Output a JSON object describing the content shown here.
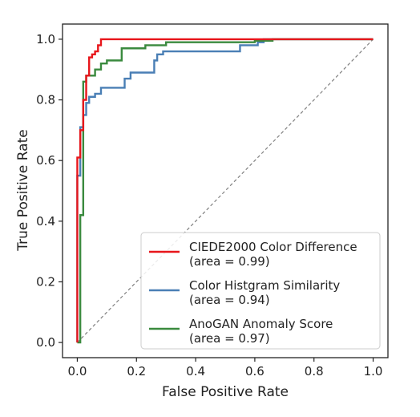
{
  "chart_data": {
    "type": "line",
    "title": "",
    "xlabel": "False Positive Rate",
    "ylabel": "True Positive Rate",
    "xlim": [
      -0.05,
      1.05
    ],
    "ylim": [
      -0.05,
      1.05
    ],
    "xticks": [
      0.0,
      0.2,
      0.4,
      0.6,
      0.8,
      1.0
    ],
    "yticks": [
      0.0,
      0.2,
      0.4,
      0.6,
      0.8,
      1.0
    ],
    "xtick_labels": [
      "0.0",
      "0.2",
      "0.4",
      "0.6",
      "0.8",
      "1.0"
    ],
    "ytick_labels": [
      "0.0",
      "0.2",
      "0.4",
      "0.6",
      "0.8",
      "1.0"
    ],
    "grid": false,
    "legend_position": "lower-right",
    "diagonal": {
      "x": [
        0,
        1
      ],
      "y": [
        0,
        1
      ],
      "color": "#808080",
      "style": "dashed"
    },
    "series": [
      {
        "name": "CIEDE2000 Color Difference",
        "area_label": "(area = 0.99)",
        "color": "#e8161b",
        "x": [
          0,
          0,
          0.01,
          0.01,
          0.02,
          0.02,
          0.03,
          0.03,
          0.04,
          0.04,
          0.05,
          0.05,
          0.06,
          0.06,
          0.07,
          0.07,
          0.08,
          0.08,
          1.0
        ],
        "y": [
          0,
          0.61,
          0.61,
          0.7,
          0.7,
          0.8,
          0.8,
          0.88,
          0.88,
          0.94,
          0.94,
          0.95,
          0.95,
          0.96,
          0.96,
          0.98,
          0.98,
          1.0,
          1.0
        ]
      },
      {
        "name": "Color Histgram Similarity",
        "area_label": "(area = 0.94)",
        "color": "#4a7fb5",
        "x": [
          0,
          0,
          0.01,
          0.01,
          0.02,
          0.02,
          0.03,
          0.03,
          0.04,
          0.04,
          0.06,
          0.06,
          0.08,
          0.08,
          0.16,
          0.16,
          0.18,
          0.18,
          0.26,
          0.26,
          0.27,
          0.27,
          0.29,
          0.29,
          0.55,
          0.55,
          0.61,
          0.61,
          0.63,
          0.63,
          1.0
        ],
        "y": [
          0,
          0.55,
          0.55,
          0.71,
          0.71,
          0.75,
          0.75,
          0.79,
          0.79,
          0.81,
          0.81,
          0.82,
          0.82,
          0.84,
          0.84,
          0.87,
          0.87,
          0.89,
          0.89,
          0.93,
          0.93,
          0.95,
          0.95,
          0.96,
          0.96,
          0.98,
          0.98,
          0.99,
          0.99,
          1.0,
          1.0
        ]
      },
      {
        "name": "AnoGAN Anomaly Score",
        "area_label": "(area = 0.97)",
        "color": "#3a8a3e",
        "x": [
          0,
          0.01,
          0.01,
          0.02,
          0.02,
          0.03,
          0.03,
          0.06,
          0.06,
          0.08,
          0.08,
          0.1,
          0.1,
          0.15,
          0.15,
          0.23,
          0.23,
          0.3,
          0.3,
          0.6,
          0.6,
          0.66,
          0.66,
          1.0
        ],
        "y": [
          0,
          0,
          0.42,
          0.42,
          0.86,
          0.86,
          0.88,
          0.88,
          0.9,
          0.9,
          0.92,
          0.92,
          0.93,
          0.93,
          0.97,
          0.97,
          0.98,
          0.98,
          0.99,
          0.99,
          0.995,
          0.995,
          1.0,
          1.0
        ]
      }
    ]
  }
}
